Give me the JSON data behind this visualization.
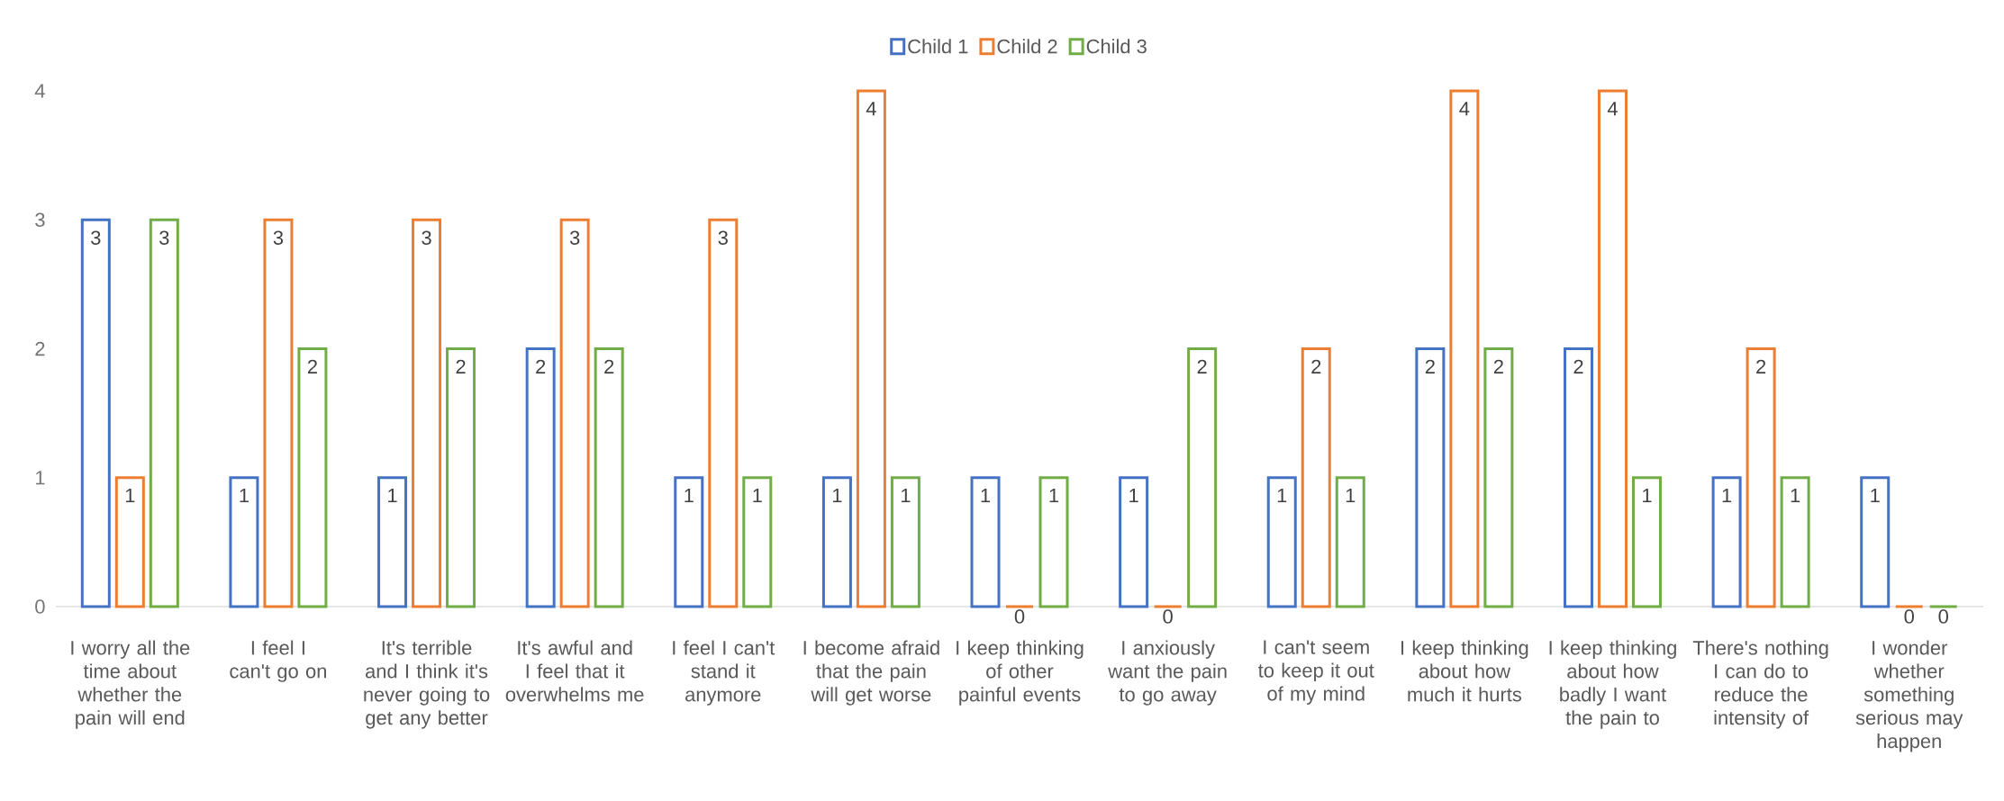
{
  "chart_data": {
    "type": "bar",
    "categories": [
      "I worry all the time about whether the pain will end",
      "I feel I can't go on",
      "It's terrible and I think it's never going to get any better",
      "It's awful and I feel that it overwhelms me",
      "I feel I can't stand it anymore",
      "I become afraid that the pain will get worse",
      "I keep thinking of other painful events",
      "I anxiously want the pain to go away",
      "I can't seem to keep it out of my mind",
      "I keep thinking about how much it hurts",
      "I keep thinking about how badly I want the pain to",
      "There's nothing I can do to reduce the intensity of",
      "I wonder whether something serious may happen"
    ],
    "series": [
      {
        "name": "Child 1",
        "color": "#4472c4",
        "values": [
          3,
          1,
          1,
          2,
          1,
          1,
          1,
          1,
          1,
          2,
          2,
          1,
          1
        ]
      },
      {
        "name": "Child 2",
        "color": "#ed7d31",
        "values": [
          1,
          3,
          3,
          3,
          3,
          4,
          0,
          0,
          2,
          4,
          4,
          2,
          0
        ]
      },
      {
        "name": "Child 3",
        "color": "#70ad47",
        "values": [
          3,
          2,
          2,
          2,
          1,
          1,
          1,
          2,
          1,
          2,
          1,
          1,
          0
        ]
      }
    ],
    "ylim": [
      0,
      4
    ],
    "yticks": [
      0,
      1,
      2,
      3,
      4
    ],
    "data_labels": true,
    "legend": "top"
  }
}
